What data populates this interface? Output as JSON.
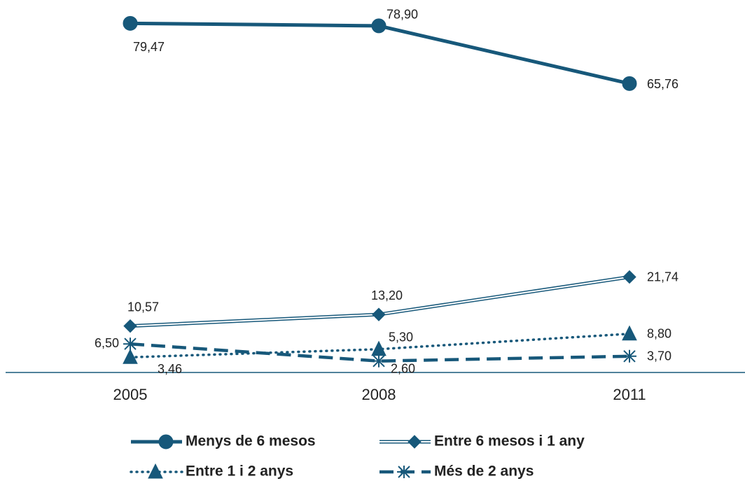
{
  "chart_data": {
    "type": "line",
    "categories": [
      "2005",
      "2008",
      "2011"
    ],
    "ylim": [
      0,
      80
    ],
    "series": [
      {
        "name": "Menys de 6 mesos",
        "color": "#17587a",
        "marker": "circle",
        "line_style": "solid",
        "values": [
          79.47,
          78.9,
          65.76
        ],
        "value_labels": [
          "79,47",
          "78,90",
          "65,76"
        ]
      },
      {
        "name": "Entre 6 mesos i 1 any",
        "color": "#17587a",
        "marker": "diamond",
        "line_style": "double",
        "values": [
          10.57,
          13.2,
          21.74
        ],
        "value_labels": [
          "10,57",
          "13,20",
          "21,74"
        ]
      },
      {
        "name": "Entre 1 i 2 anys",
        "color": "#17587a",
        "marker": "triangle",
        "line_style": "dotted",
        "values": [
          3.46,
          5.3,
          8.8
        ],
        "value_labels": [
          "3,46",
          "5,30",
          "8,80"
        ]
      },
      {
        "name": "Més de 2 anys",
        "color": "#17587a",
        "marker": "asterisk",
        "line_style": "dashed",
        "values": [
          6.5,
          2.6,
          3.7
        ],
        "value_labels": [
          "6,50",
          "2,60",
          "3,70"
        ]
      }
    ]
  }
}
